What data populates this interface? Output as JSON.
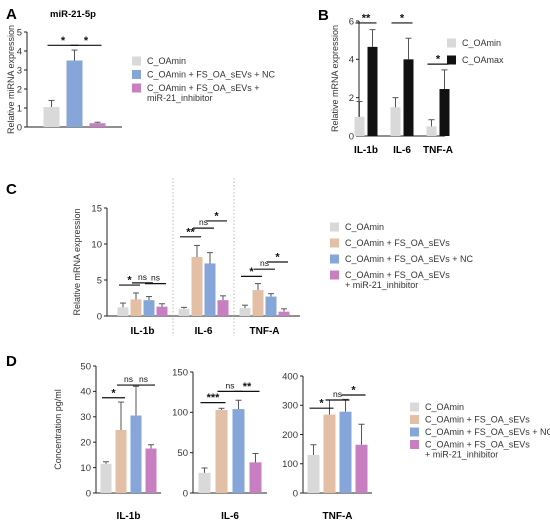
{
  "colors": {
    "gray": "#d9d9d9",
    "peach": "#e3bfa6",
    "blue": "#86a6d9",
    "purple": "#c77fc1",
    "black": "#111111",
    "axis": "#222222",
    "divider": "#aaaaaa"
  },
  "chart_data": [
    {
      "id": "A",
      "panel_label": "A",
      "type": "bar",
      "title": "miR-21-5p",
      "ylabel": "Relative miRNA expression",
      "ylim": [
        0,
        5
      ],
      "yticks": [
        "0",
        "1",
        "2",
        "3",
        "4",
        "5"
      ],
      "groups": [
        {
          "label": "",
          "values": [
            1.05,
            3.5,
            0.2
          ],
          "errors": [
            0.35,
            0.55,
            0.05
          ],
          "colors": [
            "gray",
            "blue",
            "purple"
          ]
        }
      ],
      "significance": [
        {
          "group": 0,
          "from": 0,
          "to": 1,
          "label": "*",
          "y": 4.3
        },
        {
          "group": 0,
          "from": 1,
          "to": 2,
          "label": "*",
          "y": 4.3
        }
      ],
      "legend": [
        {
          "label": "C_OAmin",
          "color": "gray"
        },
        {
          "label": "C_OAmin + FS_OA_sEVs + NC",
          "color": "blue"
        },
        {
          "label": "C_OAmin + FS_OA_sEVs +\nmiR-21_inhibitor",
          "color": "purple"
        }
      ]
    },
    {
      "id": "B",
      "panel_label": "B",
      "type": "bar",
      "title": "",
      "ylabel": "Relative mRNA expression",
      "ylim": [
        0,
        6
      ],
      "yticks": [
        "0",
        "2",
        "4",
        "6"
      ],
      "groups": [
        {
          "label": "IL-1b",
          "values": [
            1.0,
            4.65
          ],
          "errors": [
            0.8,
            0.9
          ],
          "colors": [
            "gray",
            "black"
          ]
        },
        {
          "label": "IL-6",
          "values": [
            1.5,
            4.0
          ],
          "errors": [
            0.5,
            1.1
          ],
          "colors": [
            "gray",
            "black"
          ]
        },
        {
          "label": "TNF-A",
          "values": [
            0.5,
            2.45
          ],
          "errors": [
            0.35,
            1.0
          ],
          "colors": [
            "gray",
            "black"
          ]
        }
      ],
      "significance": [
        {
          "group": 0,
          "from": 0,
          "to": 1,
          "label": "**",
          "y": 5.9
        },
        {
          "group": 1,
          "from": 0,
          "to": 1,
          "label": "*",
          "y": 5.9
        },
        {
          "group": 2,
          "from": 0,
          "to": 1,
          "label": "*",
          "y": 3.75
        }
      ],
      "legend": [
        {
          "label": "C_OAmin",
          "color": "gray"
        },
        {
          "label": "C_OAmax",
          "color": "black"
        }
      ]
    },
    {
      "id": "C",
      "panel_label": "C",
      "type": "bar",
      "title": "",
      "ylabel": "Relative mRNA expression",
      "ylim": [
        0,
        15
      ],
      "yticks": [
        "0",
        "5",
        "10",
        "15"
      ],
      "groups": [
        {
          "label": "IL-1b",
          "values": [
            1.2,
            2.3,
            2.2,
            1.3
          ],
          "errors": [
            0.6,
            0.9,
            0.5,
            0.4
          ],
          "colors": [
            "gray",
            "peach",
            "blue",
            "purple"
          ]
        },
        {
          "label": "IL-6",
          "values": [
            1.0,
            8.2,
            7.3,
            2.2
          ],
          "errors": [
            0.2,
            1.6,
            1.5,
            0.6
          ],
          "colors": [
            "gray",
            "peach",
            "blue",
            "purple"
          ]
        },
        {
          "label": "TNF-A",
          "values": [
            1.1,
            3.6,
            2.7,
            0.6
          ],
          "errors": [
            0.4,
            0.9,
            0.4,
            0.4
          ],
          "colors": [
            "gray",
            "peach",
            "blue",
            "purple"
          ]
        }
      ],
      "significance": [
        {
          "group": 0,
          "from": 0,
          "to": 1,
          "label": "*",
          "y": 4.3
        },
        {
          "group": 0,
          "from": 1,
          "to": 2,
          "label": "ns",
          "y": 4.6
        },
        {
          "group": 0,
          "from": 2,
          "to": 3,
          "label": "ns",
          "y": 4.5
        },
        {
          "group": 1,
          "from": 0,
          "to": 1,
          "label": "**",
          "y": 11.0
        },
        {
          "group": 1,
          "from": 1,
          "to": 2,
          "label": "ns",
          "y": 12.2
        },
        {
          "group": 1,
          "from": 2,
          "to": 3,
          "label": "*",
          "y": 13.2
        },
        {
          "group": 2,
          "from": 0,
          "to": 1,
          "label": "*",
          "y": 5.5
        },
        {
          "group": 2,
          "from": 1,
          "to": 2,
          "label": "ns",
          "y": 6.5
        },
        {
          "group": 2,
          "from": 2,
          "to": 3,
          "label": "*",
          "y": 7.5
        }
      ],
      "legend": [
        {
          "label": "C_OAmin",
          "color": "gray"
        },
        {
          "label": "C_OAmin + FS_OA_sEVs",
          "color": "peach"
        },
        {
          "label": "C_OAmin + FS_OA_sEVs + NC",
          "color": "blue"
        },
        {
          "label": "C_OAmin + FS_OA_sEVs\n+ miR-21_inhibitor",
          "color": "purple"
        }
      ]
    },
    {
      "id": "D1",
      "panel_label": "D",
      "type": "bar",
      "title": "",
      "xlabel": "IL-1b",
      "ylabel": "Concentration pg/ml",
      "ylim": [
        0,
        50
      ],
      "yticks": [
        "0",
        "10",
        "20",
        "30",
        "40",
        "50"
      ],
      "groups": [
        {
          "label": "",
          "values": [
            11.5,
            24.8,
            30.5,
            17.5
          ],
          "errors": [
            0.8,
            11.0,
            11.5,
            1.5
          ],
          "colors": [
            "gray",
            "peach",
            "blue",
            "purple"
          ]
        }
      ],
      "significance": [
        {
          "group": 0,
          "from": 0,
          "to": 1,
          "label": "*",
          "y": 37.5
        },
        {
          "group": 0,
          "from": 1,
          "to": 2,
          "label": "ns",
          "y": 42.5
        },
        {
          "group": 0,
          "from": 2,
          "to": 3,
          "label": "ns",
          "y": 42.5
        }
      ]
    },
    {
      "id": "D2",
      "panel_label": "",
      "type": "bar",
      "title": "",
      "xlabel": "IL-6",
      "ylabel": "",
      "ylim": [
        0,
        150
      ],
      "yticks": [
        "0",
        "50",
        "100",
        "150"
      ],
      "groups": [
        {
          "label": "",
          "values": [
            25,
            103,
            104,
            38
          ],
          "errors": [
            6,
            2,
            11,
            11
          ],
          "colors": [
            "gray",
            "peach",
            "blue",
            "purple"
          ]
        }
      ],
      "significance": [
        {
          "group": 0,
          "from": 0,
          "to": 1,
          "label": "***",
          "y": 112
        },
        {
          "group": 0,
          "from": 1,
          "to": 2,
          "label": "ns",
          "y": 126
        },
        {
          "group": 0,
          "from": 2,
          "to": 3,
          "label": "**",
          "y": 126
        }
      ]
    },
    {
      "id": "D3",
      "panel_label": "",
      "type": "bar",
      "title": "",
      "xlabel": "TNF-A",
      "ylabel": "",
      "ylim": [
        0,
        400
      ],
      "yticks": [
        "0",
        "100",
        "200",
        "300",
        "400"
      ],
      "groups": [
        {
          "label": "",
          "values": [
            130,
            268,
            278,
            165
          ],
          "errors": [
            35,
            50,
            42,
            70
          ],
          "colors": [
            "gray",
            "peach",
            "blue",
            "purple"
          ]
        }
      ],
      "significance": [
        {
          "group": 0,
          "from": 0,
          "to": 1,
          "label": "*",
          "y": 290
        },
        {
          "group": 0,
          "from": 1,
          "to": 2,
          "label": "ns",
          "y": 318
        },
        {
          "group": 0,
          "from": 2,
          "to": 3,
          "label": "*",
          "y": 335
        }
      ],
      "legend": [
        {
          "label": "C_OAmin",
          "color": "gray"
        },
        {
          "label": "C_OAmin + FS_OA_sEVs",
          "color": "peach"
        },
        {
          "label": "C_OAmin + FS_OA_sEVs + NC",
          "color": "blue"
        },
        {
          "label": "C_OAmin + FS_OA_sEVs\n+ miR-21_inhibitor",
          "color": "purple"
        }
      ]
    }
  ]
}
